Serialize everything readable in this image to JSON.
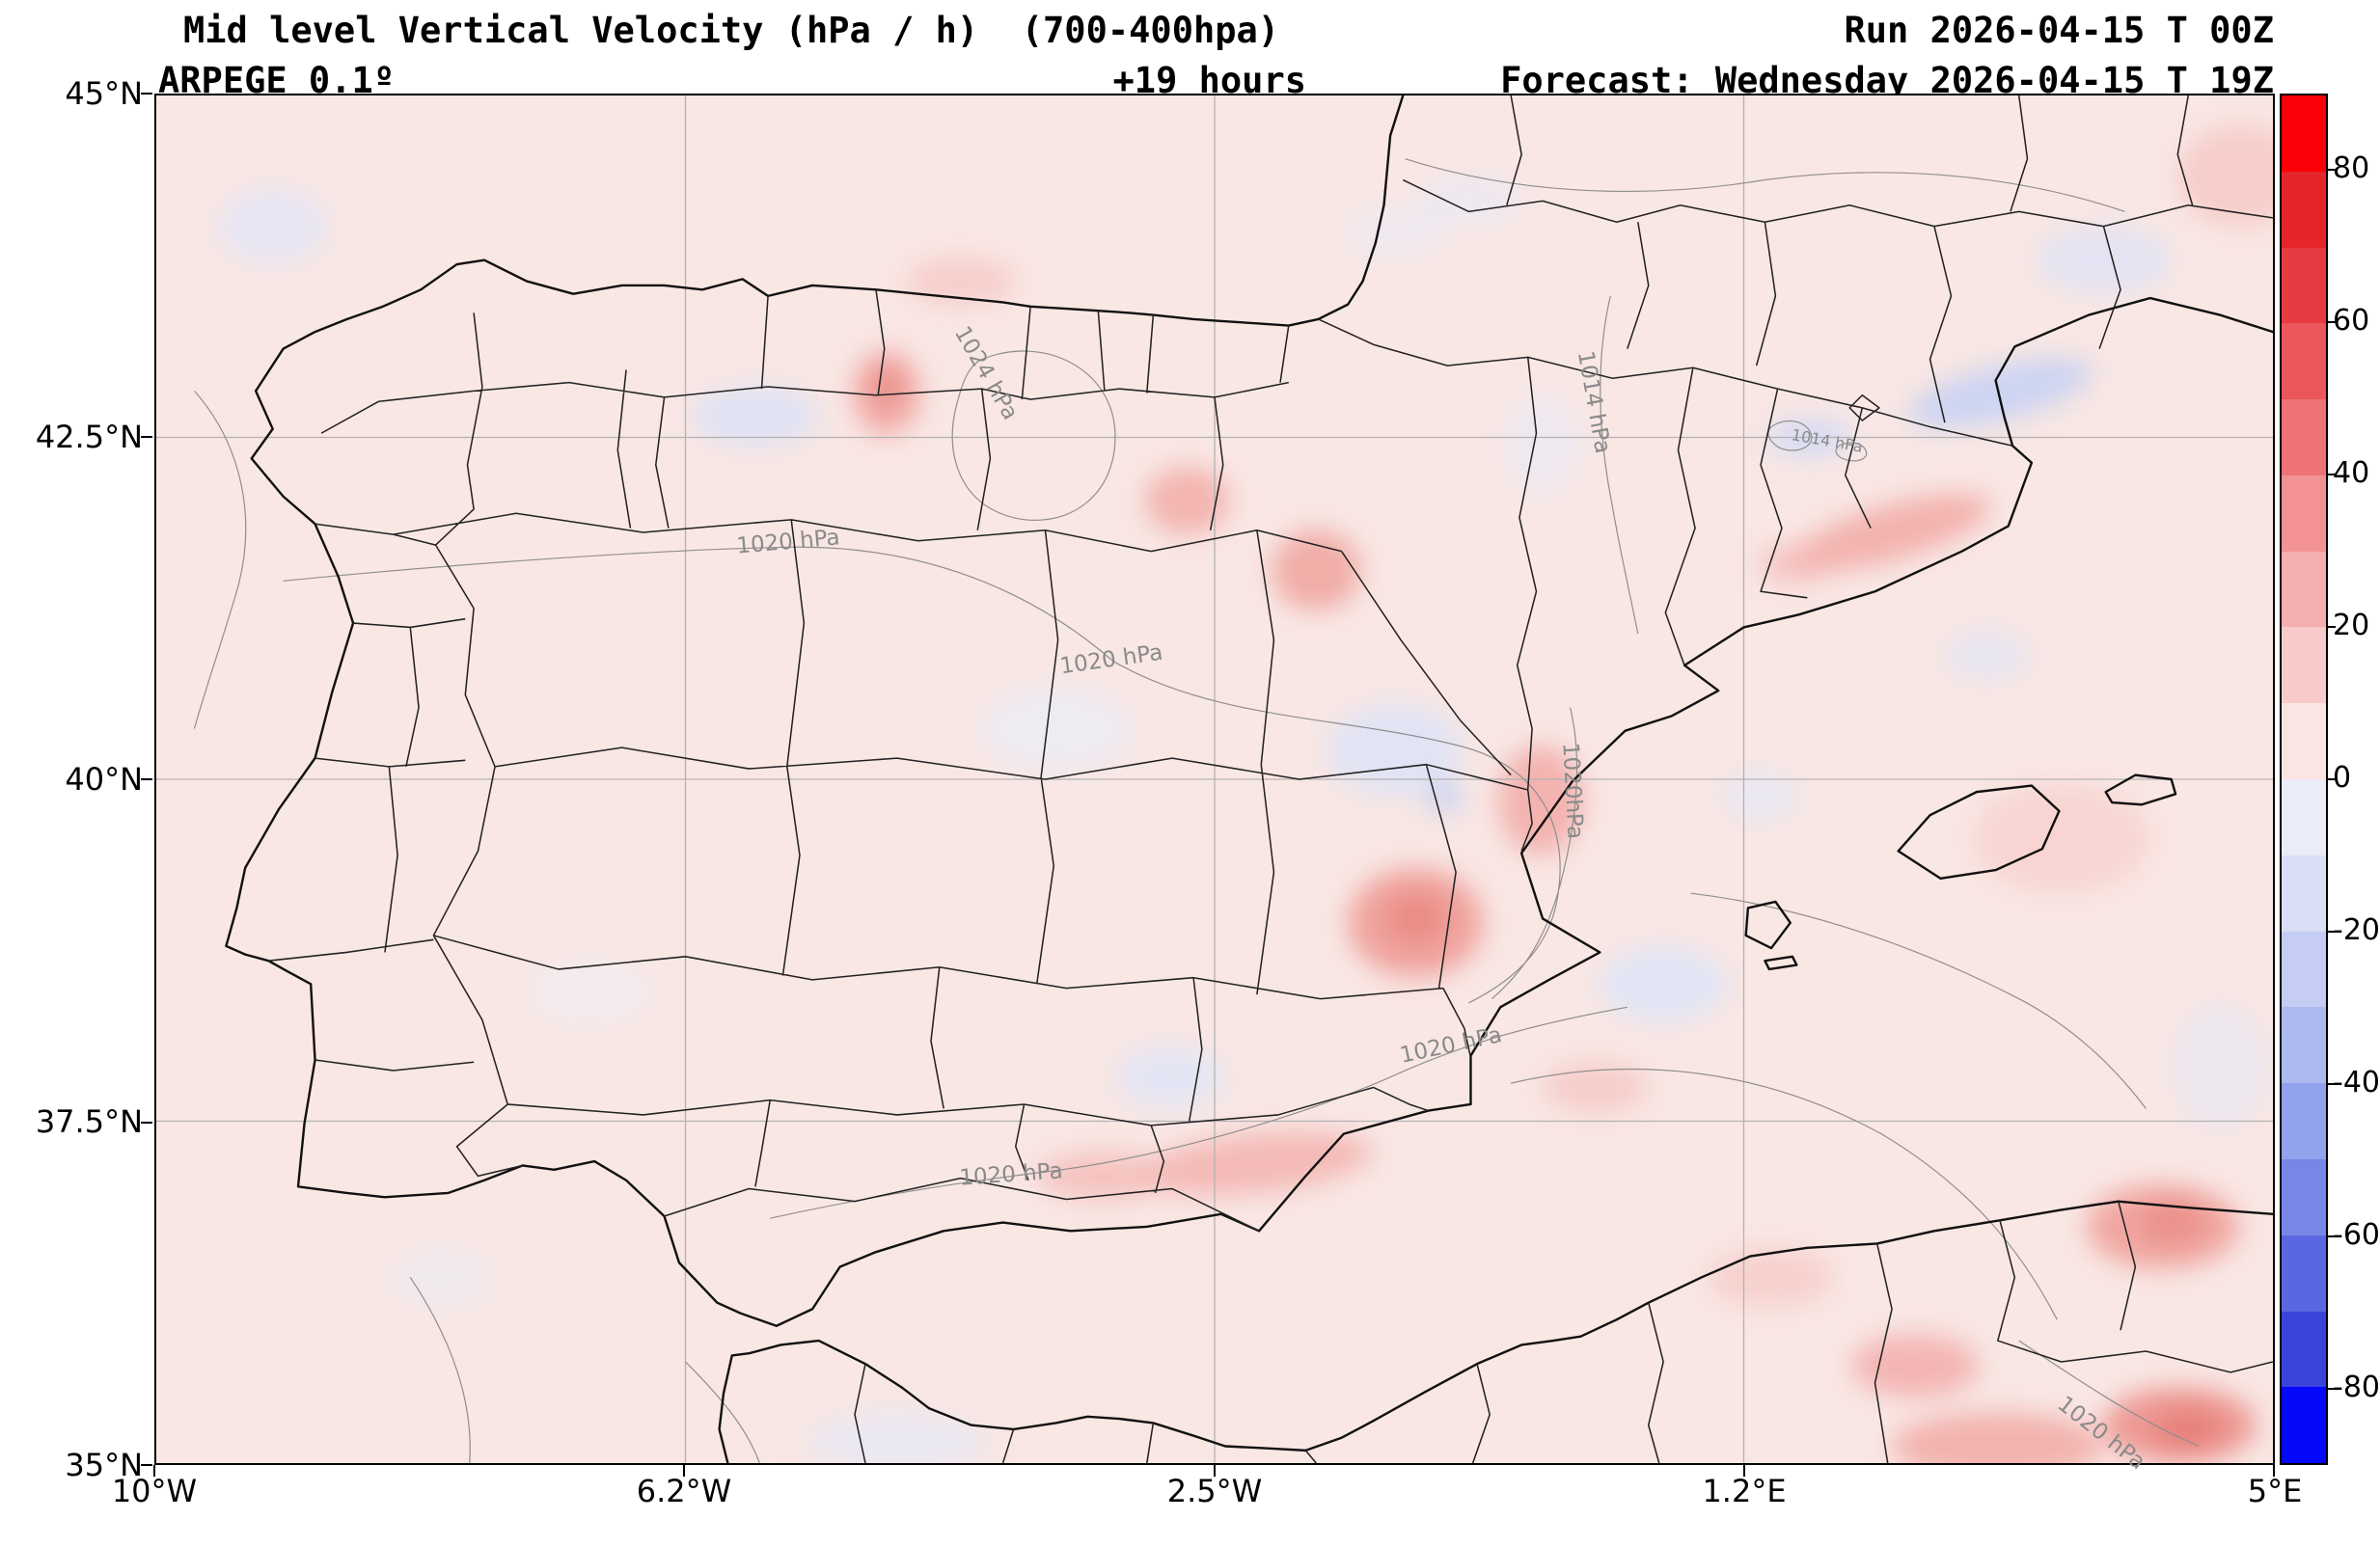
{
  "header": {
    "title": "Mid level Vertical Velocity (hPa / h)  (700-400hpa)",
    "model": "ARPEGE 0.1º",
    "forecast_hour": "+19 hours",
    "run_label": "Run 2026-04-15 T 00Z",
    "forecast_label": "Forecast: Wednesday 2026-04-15 T 19Z"
  },
  "axes": {
    "y_ticks": [
      "45°N",
      "42.5°N",
      "40°N",
      "37.5°N",
      "35°N"
    ],
    "x_ticks": [
      "10°W",
      "6.2°W",
      "2.5°W",
      "1.2°E",
      "5°E"
    ]
  },
  "colorbar": {
    "unit": "hPa / h",
    "min": -90,
    "max": 90,
    "tick_labels": [
      "80",
      "60",
      "40",
      "20",
      "0",
      "-20",
      "-40",
      "-60",
      "-80"
    ],
    "colors": [
      "#fb0007",
      "#e52529",
      "#e63b40",
      "#ea565a",
      "#ee7377",
      "#f29295",
      "#f5afb1",
      "#f8caca",
      "#fae5e3",
      "#ebecfa",
      "#dadef7",
      "#c5cdf4",
      "#adbaf0",
      "#93a2ec",
      "#7887e6",
      "#5b67e0",
      "#3a43da",
      "#0408fb"
    ]
  },
  "contour_labels": [
    {
      "text": "1024 hPa"
    },
    {
      "text": "1014 hPa"
    },
    {
      "text": "1020 hPa"
    },
    {
      "text": "1020 hPa"
    },
    {
      "text": "1020hPa"
    },
    {
      "text": "1020 hPa"
    },
    {
      "text": "1020 hPa"
    },
    {
      "text": "1020 hPa"
    },
    {
      "text": "1014 hPa"
    }
  ],
  "map_colors": {
    "background": "#f9e7e4",
    "grid": "#b3b3b3",
    "coastline": "#111111",
    "pressure_contour": "#8f8f8f",
    "negative_shade": "#ccd4f2",
    "positive_shade": "#efa09b"
  }
}
